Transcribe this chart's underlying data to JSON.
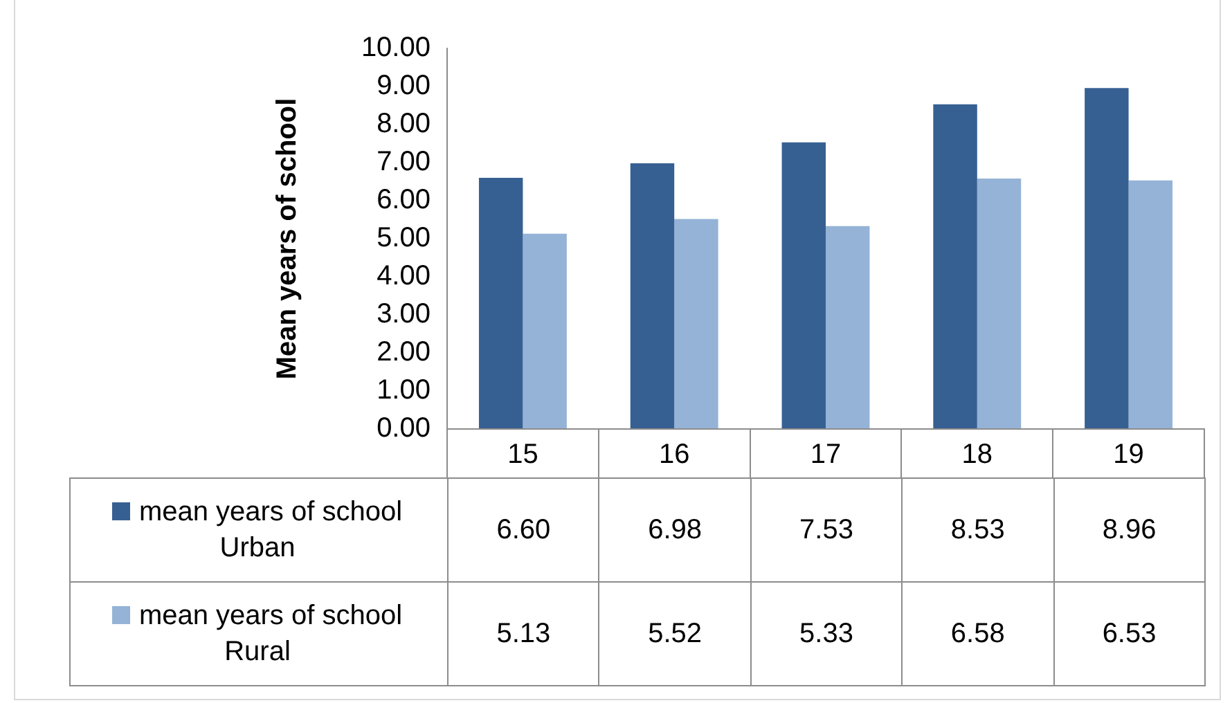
{
  "chart_data": {
    "type": "bar",
    "ylabel": "Mean years of school",
    "categories": [
      "15",
      "16",
      "17",
      "18",
      "19"
    ],
    "series": [
      {
        "name": "mean years of school Urban",
        "color": "#376092",
        "values": [
          6.6,
          6.98,
          7.53,
          8.53,
          8.96
        ],
        "value_labels": [
          "6.60",
          "6.98",
          "7.53",
          "8.53",
          "8.96"
        ]
      },
      {
        "name": "mean years of school Rural",
        "color": "#95b3d7",
        "values": [
          5.13,
          5.52,
          5.33,
          6.58,
          6.53
        ],
        "value_labels": [
          "5.13",
          "5.52",
          "5.33",
          "6.58",
          "6.53"
        ]
      }
    ],
    "ylim": [
      0,
      10
    ],
    "yticks": [
      {
        "value": 0,
        "label": "0.00"
      },
      {
        "value": 1,
        "label": "1.00"
      },
      {
        "value": 2,
        "label": "2.00"
      },
      {
        "value": 3,
        "label": "3.00"
      },
      {
        "value": 4,
        "label": "4.00"
      },
      {
        "value": 5,
        "label": "5.00"
      },
      {
        "value": 6,
        "label": "6.00"
      },
      {
        "value": 7,
        "label": "7.00"
      },
      {
        "value": 8,
        "label": "8.00"
      },
      {
        "value": 9,
        "label": "9.00"
      },
      {
        "value": 10,
        "label": "10.00"
      }
    ],
    "grid": false,
    "legend": "bottom",
    "data_labels": true
  }
}
